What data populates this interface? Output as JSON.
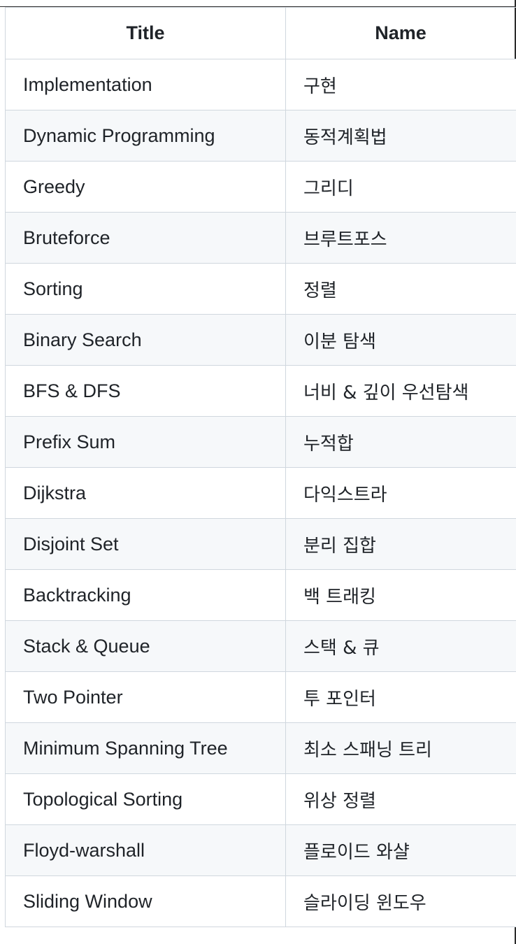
{
  "table": {
    "headers": {
      "title": "Title",
      "name": "Name"
    },
    "rows": [
      {
        "title": "Implementation",
        "name": "구현"
      },
      {
        "title": "Dynamic Programming",
        "name": "동적계획법"
      },
      {
        "title": "Greedy",
        "name": "그리디"
      },
      {
        "title": "Bruteforce",
        "name": "브루트포스"
      },
      {
        "title": "Sorting",
        "name": "정렬"
      },
      {
        "title": "Binary Search",
        "name": "이분 탐색"
      },
      {
        "title": "BFS & DFS",
        "name": "너비 & 깊이 우선탐색"
      },
      {
        "title": "Prefix Sum",
        "name": "누적합"
      },
      {
        "title": "Dijkstra",
        "name": "다익스트라"
      },
      {
        "title": "Disjoint Set",
        "name": "분리 집합"
      },
      {
        "title": "Backtracking",
        "name": "백 트래킹"
      },
      {
        "title": "Stack & Queue",
        "name": "스택 & 큐"
      },
      {
        "title": "Two Pointer",
        "name": "투 포인터"
      },
      {
        "title": "Minimum Spanning Tree",
        "name": "최소 스패닝 트리"
      },
      {
        "title": "Topological Sorting",
        "name": "위상 정렬"
      },
      {
        "title": "Floyd-warshall",
        "name": "플로이드 와샬"
      },
      {
        "title": "Sliding Window",
        "name": "슬라이딩 윈도우"
      }
    ]
  },
  "colors": {
    "border": "#d0d7de",
    "stripe": "#f6f8fa",
    "text": "#1f2328"
  }
}
